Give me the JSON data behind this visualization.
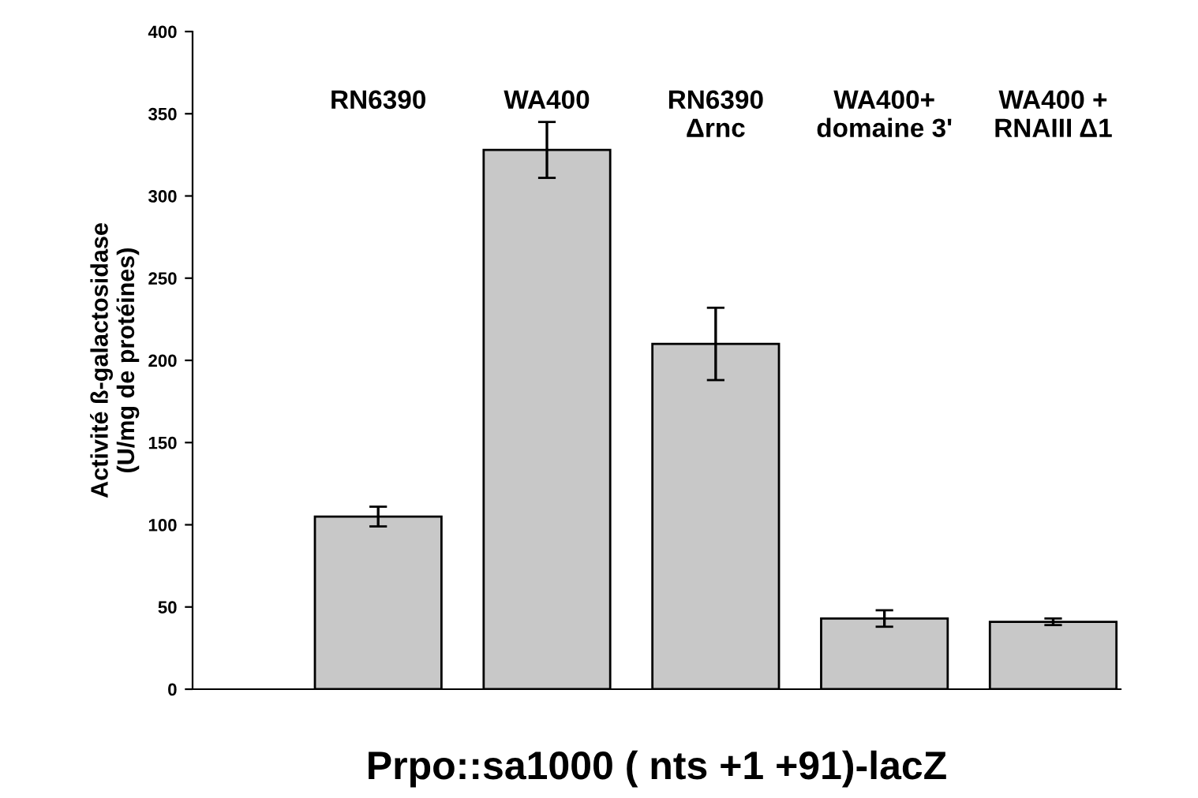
{
  "chart_data": {
    "type": "bar",
    "categories": [
      "RN6390",
      "WA400",
      "RN6390\nΔrnc",
      "WA400+\ndomaine 3'",
      "WA400 +\nRNAIII Δ1"
    ],
    "values": [
      105,
      328,
      210,
      43,
      41
    ],
    "errors": [
      6,
      17,
      22,
      5,
      2
    ],
    "color": "#c8c8c8",
    "ylabel": "Activité ß-galactosidase\n(U/mg de protéines)",
    "xlabel": "Prpo::sa1000 ( nts +1 +91)-lacZ",
    "ylim": [
      0,
      400
    ],
    "yticks": [
      0,
      50,
      100,
      150,
      200,
      250,
      300,
      350,
      400
    ],
    "grid": false,
    "legend": false
  }
}
